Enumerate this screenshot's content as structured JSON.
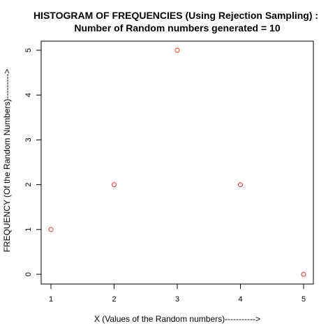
{
  "chart_data": {
    "type": "scatter",
    "title_line1": "HISTOGRAM OF FREQUENCIES (Using Rejection Sampling) :",
    "title_line2": "Number of Random numbers generated =  10",
    "xlabel": "X (Values of the Random numbers)----------->",
    "ylabel": "FREQUENCY (Of the Random Numbers)--------->",
    "x": [
      1,
      2,
      3,
      4,
      5
    ],
    "y": [
      1,
      2,
      5,
      2,
      0
    ],
    "xlim": [
      1,
      5
    ],
    "ylim": [
      0,
      5
    ],
    "xticks": [
      1,
      2,
      3,
      4,
      5
    ],
    "yticks": [
      0,
      1,
      2,
      3,
      4,
      5
    ],
    "point_color": "#e8302a",
    "grid": false
  }
}
